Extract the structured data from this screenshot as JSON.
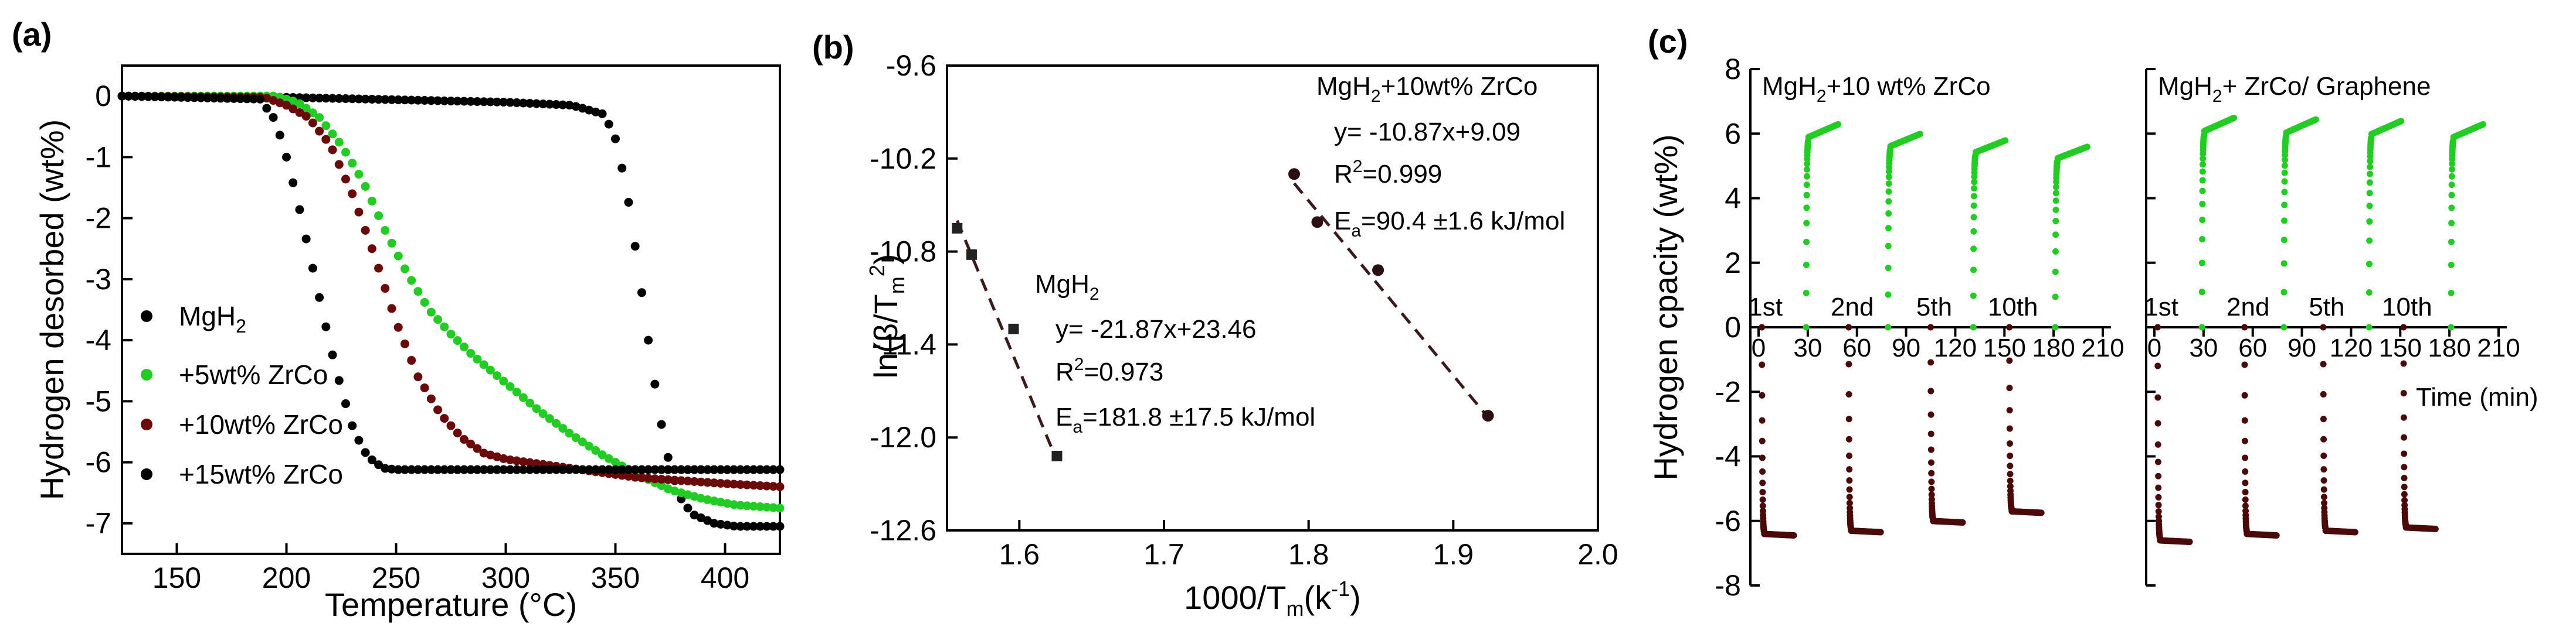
{
  "colors": {
    "mgh2": "#000000",
    "wt5": "#22cc22",
    "wt10": "#6b0a0a",
    "wt15": "#000000",
    "dashed": "#3a1a1a",
    "hyd": "#22cc22",
    "dehyd": "#4a0a0a"
  },
  "chart_data": [
    {
      "type": "scatter",
      "panel_label": "(a)",
      "xlabel": "Temperature (°C)",
      "ylabel": "Hydrogen desorbed (wt%)",
      "xlim": [
        125,
        425
      ],
      "ylim": [
        -7.5,
        0.5
      ],
      "xticks": [
        150,
        200,
        250,
        300,
        350,
        400
      ],
      "yticks": [
        0,
        -1,
        -2,
        -3,
        -4,
        -5,
        -6,
        -7
      ],
      "xtick_labels": [
        "150",
        "200",
        "250",
        "300",
        "350",
        "400"
      ],
      "ytick_labels": [
        "0",
        "-1",
        "-2",
        "-3",
        "-4",
        "-5",
        "-6",
        "-7"
      ],
      "series": [
        {
          "name": "MgH2",
          "legend": "MgH₂",
          "color": "#000000",
          "x": [
            125,
            200,
            250,
            300,
            330,
            345,
            350,
            355,
            360,
            365,
            370,
            375,
            380,
            385,
            395,
            405,
            425
          ],
          "y": [
            0,
            -0.02,
            -0.06,
            -0.1,
            -0.15,
            -0.3,
            -0.7,
            -1.5,
            -2.7,
            -4.0,
            -5.2,
            -6.1,
            -6.6,
            -6.85,
            -7.0,
            -7.05,
            -7.05
          ]
        },
        {
          "name": "+5wt% ZrCo",
          "legend": "+5wt% ZrCo",
          "color": "#22cc22",
          "x": [
            125,
            195,
            205,
            215,
            225,
            235,
            245,
            255,
            265,
            275,
            285,
            295,
            305,
            315,
            330,
            345,
            360,
            375,
            390,
            405,
            425
          ],
          "y": [
            0,
            0,
            -0.1,
            -0.35,
            -0.8,
            -1.4,
            -2.2,
            -2.9,
            -3.5,
            -3.9,
            -4.25,
            -4.55,
            -4.85,
            -5.15,
            -5.55,
            -5.9,
            -6.2,
            -6.45,
            -6.6,
            -6.7,
            -6.75
          ]
        },
        {
          "name": "+10wt% ZrCo",
          "legend": "+10wt% ZrCo",
          "color": "#6b0a0a",
          "x": [
            125,
            190,
            200,
            210,
            220,
            230,
            240,
            250,
            260,
            270,
            280,
            290,
            300,
            320,
            340,
            360,
            380,
            400,
            425
          ],
          "y": [
            0,
            -0.02,
            -0.15,
            -0.35,
            -0.8,
            -1.6,
            -2.6,
            -3.7,
            -4.6,
            -5.2,
            -5.6,
            -5.85,
            -5.95,
            -6.05,
            -6.15,
            -6.25,
            -6.3,
            -6.35,
            -6.4
          ]
        },
        {
          "name": "+15wt% ZrCo",
          "legend": "+15wt% ZrCo",
          "color": "#000000",
          "x": [
            125,
            188,
            195,
            200,
            205,
            210,
            215,
            220,
            225,
            230,
            235,
            240,
            245,
            250,
            270,
            300,
            350,
            400,
            425
          ],
          "y": [
            0,
            -0.05,
            -0.4,
            -1.0,
            -1.7,
            -2.5,
            -3.3,
            -4.1,
            -4.8,
            -5.4,
            -5.8,
            -6.0,
            -6.1,
            -6.12,
            -6.12,
            -6.12,
            -6.12,
            -6.12,
            -6.12
          ]
        }
      ]
    },
    {
      "type": "scatter",
      "panel_label": "(b)",
      "xlabel": "1000/T",
      "xlabel_sub": "m",
      "xlabel_suffix": "(k",
      "xlabel_sup": "-1",
      "xlabel_end": ")",
      "ylabel": "ln(β/T",
      "ylabel_sub": "m",
      "ylabel_sup": "2",
      "ylabel_end": ")",
      "xlim": [
        1.55,
        2.0
      ],
      "ylim": [
        -12.6,
        -9.6
      ],
      "xticks": [
        1.6,
        1.7,
        1.8,
        1.9,
        2.0
      ],
      "yticks": [
        -9.6,
        -10.2,
        -10.8,
        -11.4,
        -12.0,
        -12.6
      ],
      "xtick_labels": [
        "1.6",
        "1.7",
        "1.8",
        "1.9",
        "2.0"
      ],
      "ytick_labels": [
        "-9.6",
        "-10.2",
        "-10.8",
        "-11.4",
        "-12.0",
        "-12.6"
      ],
      "series": [
        {
          "name": "MgH2",
          "x": [
            1.557,
            1.567,
            1.596,
            1.626
          ],
          "y": [
            -10.65,
            -10.82,
            -11.3,
            -12.12
          ],
          "fit_x": [
            1.557,
            1.626
          ],
          "fit_y": [
            -10.6,
            -12.15
          ]
        },
        {
          "name": "MgH2+10wt% ZrCo",
          "x": [
            1.79,
            1.806,
            1.848,
            1.924
          ],
          "y": [
            -10.3,
            -10.61,
            -10.92,
            -11.86
          ],
          "fit_x": [
            1.79,
            1.924
          ],
          "fit_y": [
            -10.36,
            -11.87
          ]
        }
      ],
      "annotations": {
        "mgh2_title": "MgH",
        "mgh2_title_sub": "2",
        "mgh2_eq": "y= -21.87x+23.46",
        "mgh2_r": "R",
        "mgh2_r_sup": "2",
        "mgh2_r_val": "=0.973",
        "mgh2_ea": "E",
        "mgh2_ea_sub": "a",
        "mgh2_ea_val": "=181.8 ±17.5 kJ/mol",
        "zrco_title": "MgH",
        "zrco_title_sub": "2",
        "zrco_title_rest": "+10wt% ZrCo",
        "zrco_eq": "y= -10.87x+9.09",
        "zrco_r": "R",
        "zrco_r_sup": "2",
        "zrco_r_val": "=0.999",
        "zrco_ea": "E",
        "zrco_ea_sub": "a",
        "zrco_ea_val": "=90.4 ±1.6 kJ/mol"
      }
    },
    {
      "type": "scatter",
      "panel_label": "(c)",
      "ylabel": "Hydrogen cpacity (wt%)",
      "xlabel": "Time (min)",
      "xlim": [
        0,
        210
      ],
      "ylim": [
        -8,
        8
      ],
      "yticks": [
        -8,
        -6,
        -4,
        -2,
        0,
        2,
        4,
        6,
        8
      ],
      "ytick_labels": [
        "-8",
        "-6",
        "-4",
        "-2",
        "0",
        "2",
        "4",
        "6",
        "8"
      ],
      "xticks": [
        0,
        30,
        60,
        90,
        120,
        150,
        180,
        210
      ],
      "xtick_labels": [
        "0",
        "30",
        "60",
        "90",
        "120",
        "150",
        "180",
        "210"
      ],
      "subpanels": [
        {
          "title": "MgH",
          "title_sub": "2",
          "title_rest": "+10 wt% ZrCo",
          "cycle_labels": [
            "1st",
            "2nd",
            "5th",
            "10th"
          ],
          "cycles": [
            {
              "dehyd_start": 2,
              "dehyd_min": -6.4,
              "hyd_start": 29,
              "hyd_max": 6.3
            },
            {
              "dehyd_start": 55,
              "dehyd_min": -6.3,
              "hyd_start": 79,
              "hyd_max": 6.0
            },
            {
              "dehyd_start": 105,
              "dehyd_min": -6.0,
              "hyd_start": 131,
              "hyd_max": 5.8
            },
            {
              "dehyd_start": 153,
              "dehyd_min": -5.7,
              "hyd_start": 181,
              "hyd_max": 5.6
            }
          ]
        },
        {
          "title": "MgH",
          "title_sub": "2",
          "title_rest": "+ ZrCo/ Graphene",
          "cycle_labels": [
            "1st",
            "2nd",
            "5th",
            "10th"
          ],
          "cycles": [
            {
              "dehyd_start": 2,
              "dehyd_min": -6.6,
              "hyd_start": 29,
              "hyd_max": 6.5
            },
            {
              "dehyd_start": 55,
              "dehyd_min": -6.4,
              "hyd_start": 79,
              "hyd_max": 6.45
            },
            {
              "dehyd_start": 103,
              "dehyd_min": -6.3,
              "hyd_start": 131,
              "hyd_max": 6.4
            },
            {
              "dehyd_start": 152,
              "dehyd_min": -6.2,
              "hyd_start": 181,
              "hyd_max": 6.3
            }
          ]
        }
      ]
    }
  ]
}
